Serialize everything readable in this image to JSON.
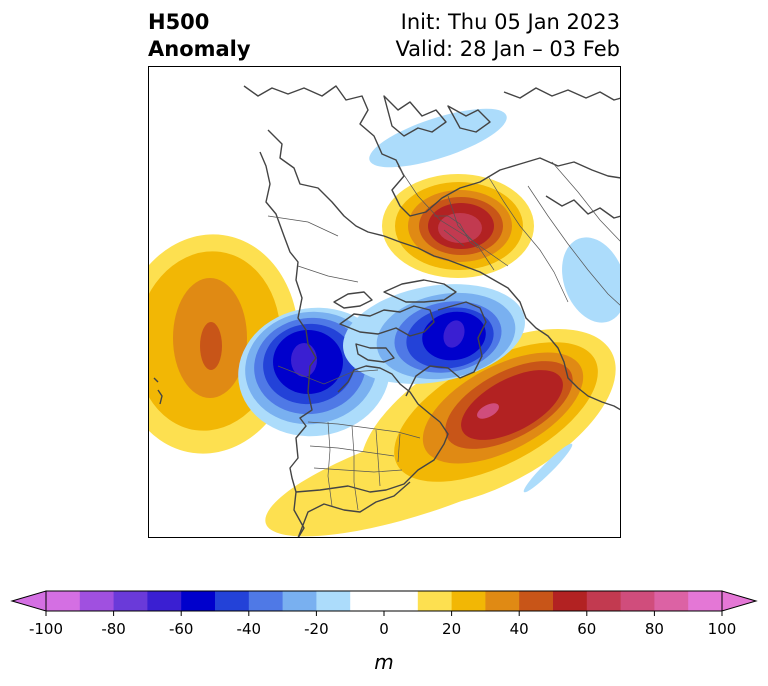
{
  "title": {
    "line1": "H500",
    "line2": "Anomaly",
    "init": "Init: Thu 05 Jan 2023",
    "valid": "Valid: 28 Jan – 03 Feb"
  },
  "colorbar": {
    "unit_label": "m",
    "ticks": [
      "-100",
      "-80",
      "-60",
      "-40",
      "-20",
      "0",
      "20",
      "40",
      "60",
      "80",
      "100"
    ],
    "colors": [
      "#d46fe3",
      "#a050e0",
      "#6a3ad9",
      "#3a1fd2",
      "#0000cc",
      "#2342d8",
      "#4f79e6",
      "#79b0f0",
      "#acdcfb",
      "#ffffff",
      "#ffffff",
      "#fde050",
      "#f2b705",
      "#e08a14",
      "#c85518",
      "#b22222",
      "#c23a50",
      "#d04d7c",
      "#dc62a4",
      "#e477d6"
    ],
    "under_color": "#d46fe3",
    "over_color": "#e477d6"
  },
  "map": {
    "projection": "north polar stereographic",
    "features": [
      {
        "name": "Pacific ridge",
        "sign": "positive",
        "peak_m": 55
      },
      {
        "name": "Western North America trough",
        "sign": "negative",
        "peak_m": -75
      },
      {
        "name": "Hudson Bay / Baffin trough",
        "sign": "negative",
        "peak_m": -70
      },
      {
        "name": "North Atlantic ridge",
        "sign": "positive",
        "peak_m": 80
      },
      {
        "name": "Siberian ridge",
        "sign": "positive",
        "peak_m": 70
      },
      {
        "name": "Polar trough",
        "sign": "negative",
        "peak_m": -20
      },
      {
        "name": "Eurasia trough",
        "sign": "negative",
        "peak_m": -20
      },
      {
        "name": "North America ridge",
        "sign": "positive",
        "peak_m": 15
      }
    ]
  }
}
